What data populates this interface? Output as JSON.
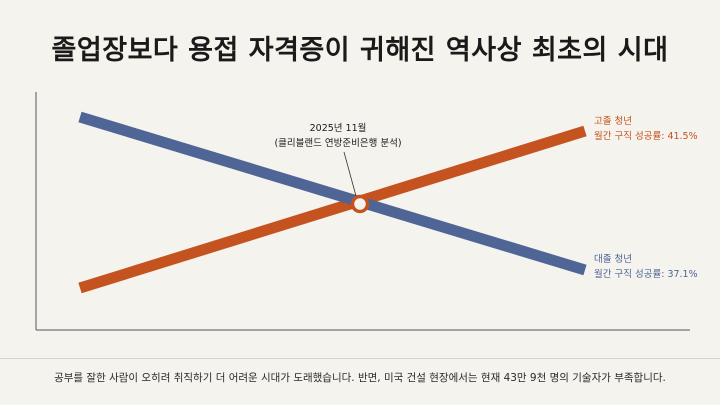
{
  "title": "졸업장보다 용접 자격증이 귀해진 역사상 최초의 시대",
  "footer": "공부를 잘한 사람이 오히려 취직하기 더 어려운 시대가 도래했습니다. 반면, 미국 건설 현장에서는 현재 43만 9천 명의 기술자가 부족합니다.",
  "chart_data": {
    "type": "line",
    "grid": false,
    "legend": "none",
    "series": [
      {
        "name": "고졸 청년",
        "label_line2": "월간 구직 성공률: 41.5%",
        "end_value": 41.5,
        "color": "#c4531f"
      },
      {
        "name": "대졸 청년",
        "label_line2": "월간 구직 성공률: 37.1%",
        "end_value": 37.1,
        "color": "#4f6596"
      }
    ],
    "annotation": {
      "line1": "2025년 11월",
      "line2": "(클리블랜드 연방준비은행 분석)"
    }
  }
}
